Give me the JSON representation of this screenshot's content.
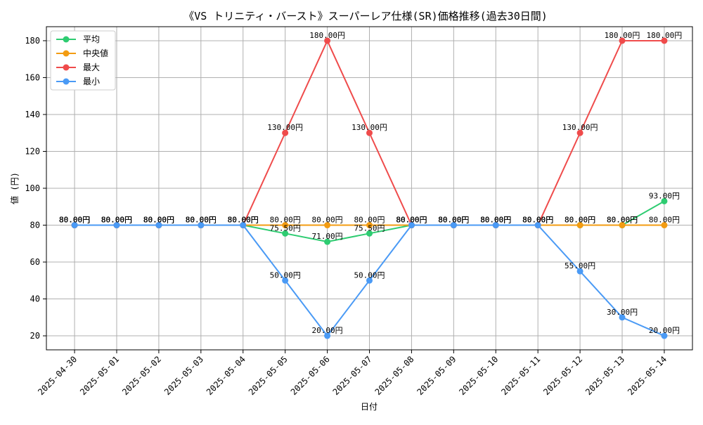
{
  "chart_data": {
    "type": "line",
    "title": "《VS トリニティ・バースト》スーパーレア仕様(SR)価格推移(過去30日間)",
    "xlabel": "日付",
    "ylabel": "値 (円)",
    "categories": [
      "2025-04-30",
      "2025-05-01",
      "2025-05-02",
      "2025-05-03",
      "2025-05-04",
      "2025-05-05",
      "2025-05-06",
      "2025-05-07",
      "2025-05-08",
      "2025-05-09",
      "2025-05-10",
      "2025-05-11",
      "2025-05-12",
      "2025-05-13",
      "2025-05-14"
    ],
    "ylim": [
      12.4,
      187.6
    ],
    "yticks": [
      20,
      40,
      60,
      80,
      100,
      120,
      140,
      160,
      180
    ],
    "grid": true,
    "legend_position": "top-left",
    "series": [
      {
        "name": "平均",
        "color": "#2ecc71",
        "values": [
          80,
          80,
          80,
          80,
          80,
          75.5,
          71,
          75.5,
          80,
          80,
          80,
          80,
          80,
          80,
          93
        ],
        "labels": [
          "80.00円",
          "80.00円",
          "80.00円",
          "80.00円",
          "80.00円",
          "75.50円",
          "71.00円",
          "75.50円",
          "80.00円",
          "80.00円",
          "80.00円",
          "80.00円",
          "80.00円",
          "80.00円",
          "93.00円"
        ]
      },
      {
        "name": "中央値",
        "color": "#f39c12",
        "values": [
          80,
          80,
          80,
          80,
          80,
          80,
          80,
          80,
          80,
          80,
          80,
          80,
          80,
          80,
          80
        ],
        "labels": [
          "80.00円",
          "80.00円",
          "80.00円",
          "80.00円",
          "80.00円",
          "80.00円",
          "80.00円",
          "80.00円",
          "80.00円",
          "80.00円",
          "80.00円",
          "80.00円",
          "80.00円",
          "80.00円",
          "80.00円"
        ]
      },
      {
        "name": "最大",
        "color": "#ef4b4b",
        "values": [
          80,
          80,
          80,
          80,
          80,
          130,
          180,
          130,
          80,
          80,
          80,
          80,
          130,
          180,
          180
        ],
        "labels": [
          "80.00円",
          "80.00円",
          "80.00円",
          "80.00円",
          "80.00円",
          "130.00円",
          "180.00円",
          "130.00円",
          "80.00円",
          "80.00円",
          "80.00円",
          "80.00円",
          "130.00円",
          "180.00円",
          "180.00円"
        ]
      },
      {
        "name": "最小",
        "color": "#4a9af5",
        "values": [
          80,
          80,
          80,
          80,
          80,
          50,
          20,
          50,
          80,
          80,
          80,
          80,
          55,
          30,
          20
        ],
        "labels": [
          "80.00円",
          "80.00円",
          "80.00円",
          "80.00円",
          "80.00円",
          "50.00円",
          "20.00円",
          "50.00円",
          "80.00円",
          "80.00円",
          "80.00円",
          "80.00円",
          "55.00円",
          "30.00円",
          "20.00円"
        ]
      }
    ]
  }
}
